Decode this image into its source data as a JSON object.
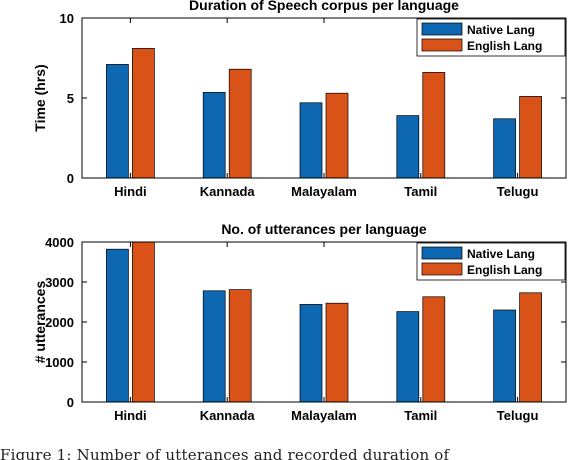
{
  "colors": {
    "native": "#0d67b1",
    "english": "#d95319",
    "axis": "#000000"
  },
  "chart_data": [
    {
      "type": "bar",
      "title": "Duration of Speech corpus per language",
      "xlabel": "",
      "ylabel": "Time (hrs)",
      "categories": [
        "Hindi",
        "Kannada",
        "Malayalam",
        "Tamil",
        "Telugu"
      ],
      "series": [
        {
          "name": "Native Lang",
          "values": [
            7.1,
            5.35,
            4.7,
            3.9,
            3.7
          ]
        },
        {
          "name": "English Lang",
          "values": [
            8.1,
            6.8,
            5.3,
            6.6,
            5.1
          ]
        }
      ],
      "ylim": [
        0,
        10
      ],
      "yticks": [
        "0",
        "5",
        "10"
      ],
      "ytick_values": [
        0,
        5,
        10
      ],
      "grid": false,
      "legend": "top-right"
    },
    {
      "type": "bar",
      "title": "No. of utterances per language",
      "xlabel": "",
      "ylabel": "# utterances",
      "categories": [
        "Hindi",
        "Kannada",
        "Malayalam",
        "Tamil",
        "Telugu"
      ],
      "series": [
        {
          "name": "Native Lang",
          "values": [
            3820,
            2780,
            2440,
            2260,
            2300
          ]
        },
        {
          "name": "English Lang",
          "values": [
            4010,
            2810,
            2470,
            2630,
            2730
          ]
        }
      ],
      "ylim": [
        0,
        4000
      ],
      "yticks": [
        "0",
        "1000",
        "2000",
        "3000",
        "4000"
      ],
      "ytick_values": [
        0,
        1000,
        2000,
        3000,
        4000
      ],
      "grid": false,
      "legend": "top-right"
    }
  ],
  "caption": {
    "text": "Figure 1: Number of utterances and recorded duration of"
  }
}
